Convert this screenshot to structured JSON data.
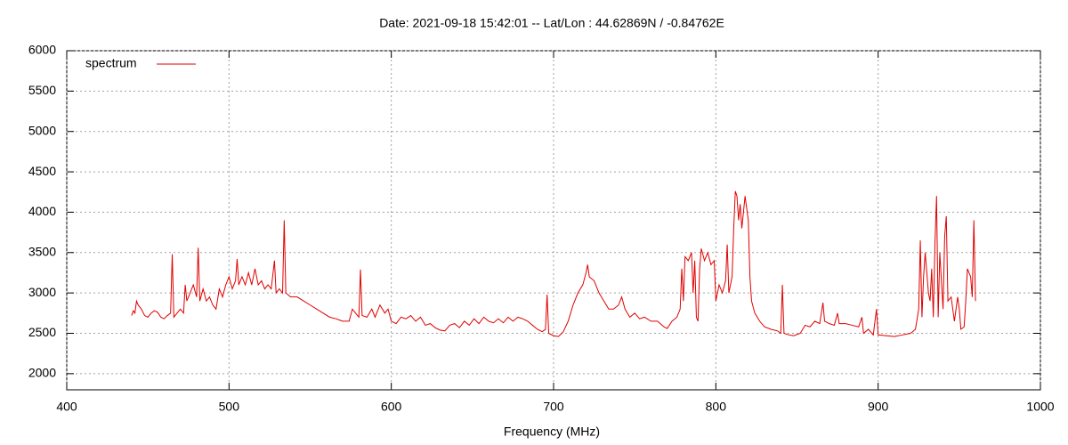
{
  "chart_data": {
    "type": "line",
    "title": "Date: 2021-09-18 15:42:01  --  Lat/Lon : 44.62869N / -0.84762E",
    "x_label": "Frequency (MHz)",
    "xlim": [
      400,
      1000
    ],
    "xticks": [
      400,
      500,
      600,
      700,
      800,
      900,
      1000
    ],
    "ylim": [
      1800,
      6000
    ],
    "yticks": [
      2000,
      2500,
      3000,
      3500,
      4000,
      4500,
      5000,
      5500,
      6000
    ],
    "grid": true,
    "legend": "top-left",
    "x": [
      440,
      441,
      442,
      443,
      444,
      446,
      448,
      450,
      452,
      454,
      456,
      458,
      460,
      462,
      464,
      465,
      466,
      468,
      470,
      472,
      473,
      474,
      476,
      478,
      480,
      481,
      482,
      484,
      486,
      488,
      490,
      492,
      494,
      496,
      498,
      500,
      502,
      504,
      505,
      506,
      508,
      510,
      512,
      514,
      516,
      518,
      520,
      522,
      524,
      526,
      528,
      529,
      531,
      533,
      534,
      535,
      538,
      542,
      546,
      550,
      554,
      558,
      562,
      566,
      570,
      574,
      576,
      578,
      580,
      581,
      582,
      585,
      588,
      590,
      593,
      596,
      598,
      600,
      603,
      606,
      609,
      612,
      615,
      618,
      621,
      624,
      627,
      630,
      633,
      636,
      639,
      642,
      645,
      648,
      651,
      654,
      657,
      660,
      663,
      666,
      669,
      672,
      675,
      678,
      681,
      684,
      687,
      690,
      693,
      695,
      696,
      697,
      700,
      703,
      706,
      709,
      712,
      715,
      718,
      720,
      721,
      722,
      725,
      728,
      731,
      734,
      737,
      740,
      742,
      744,
      747,
      750,
      753,
      756,
      760,
      764,
      768,
      770,
      773,
      776,
      778,
      779,
      780,
      781,
      783,
      785,
      786,
      787,
      788,
      789,
      790,
      791,
      793,
      795,
      797,
      799,
      800,
      802,
      804,
      806,
      807,
      808,
      810,
      811,
      812,
      813,
      814,
      815,
      816,
      818,
      820,
      821,
      822,
      824,
      827,
      830,
      834,
      838,
      840,
      841,
      842,
      845,
      848,
      852,
      855,
      858,
      861,
      864,
      866,
      867,
      870,
      873,
      875,
      876,
      880,
      884,
      888,
      890,
      891,
      894,
      897,
      899,
      900,
      905,
      910,
      915,
      920,
      923,
      925,
      926,
      927,
      928,
      929,
      931,
      932,
      933,
      934,
      935,
      936,
      937,
      938,
      940,
      941,
      942,
      943,
      945,
      947,
      949,
      950,
      951,
      953,
      954,
      955,
      957,
      958,
      959,
      960
    ],
    "series": [
      {
        "name": "spectrum",
        "color": "#e00000",
        "values": [
          2720,
          2780,
          2750,
          2900,
          2850,
          2800,
          2720,
          2700,
          2750,
          2780,
          2760,
          2700,
          2680,
          2720,
          2750,
          3480,
          2700,
          2750,
          2800,
          2750,
          3100,
          2900,
          3000,
          3100,
          2950,
          3560,
          2900,
          3050,
          2900,
          2950,
          2850,
          2800,
          3050,
          2950,
          3100,
          3200,
          3050,
          3150,
          3420,
          3100,
          3200,
          3100,
          3250,
          3100,
          3300,
          3100,
          3150,
          3050,
          3100,
          3050,
          3400,
          3000,
          3050,
          3000,
          3900,
          3000,
          2950,
          2950,
          2900,
          2850,
          2800,
          2750,
          2700,
          2680,
          2650,
          2650,
          2800,
          2750,
          2700,
          3290,
          2720,
          2700,
          2800,
          2700,
          2850,
          2750,
          2800,
          2650,
          2620,
          2700,
          2680,
          2720,
          2650,
          2700,
          2600,
          2620,
          2570,
          2540,
          2530,
          2600,
          2620,
          2570,
          2650,
          2600,
          2680,
          2620,
          2700,
          2650,
          2630,
          2680,
          2630,
          2700,
          2650,
          2700,
          2680,
          2650,
          2600,
          2550,
          2520,
          2550,
          2980,
          2500,
          2470,
          2460,
          2520,
          2650,
          2850,
          3000,
          3100,
          3250,
          3350,
          3200,
          3150,
          3000,
          2900,
          2800,
          2800,
          2850,
          2950,
          2800,
          2700,
          2750,
          2680,
          2700,
          2650,
          2650,
          2580,
          2560,
          2650,
          2700,
          2800,
          3300,
          2900,
          3450,
          3400,
          3500,
          3000,
          3400,
          2700,
          2650,
          3300,
          3550,
          3400,
          3500,
          3350,
          3400,
          2900,
          3100,
          3000,
          3150,
          3600,
          3000,
          3200,
          3800,
          4260,
          4200,
          3900,
          4100,
          3800,
          4200,
          3900,
          3200,
          2900,
          2750,
          2650,
          2580,
          2550,
          2530,
          2500,
          3100,
          2500,
          2480,
          2470,
          2500,
          2600,
          2580,
          2650,
          2620,
          2880,
          2650,
          2620,
          2600,
          2750,
          2620,
          2620,
          2600,
          2580,
          2700,
          2500,
          2550,
          2480,
          2800,
          2480,
          2470,
          2460,
          2480,
          2500,
          2550,
          2800,
          3650,
          2700,
          3200,
          3500,
          3000,
          2900,
          3300,
          2700,
          3600,
          4200,
          2700,
          3500,
          2800,
          3700,
          3950,
          2900,
          2950,
          2650,
          2950,
          2800,
          2550,
          2580,
          2900,
          3300,
          3200,
          2950,
          3900,
          2900
        ]
      }
    ]
  }
}
